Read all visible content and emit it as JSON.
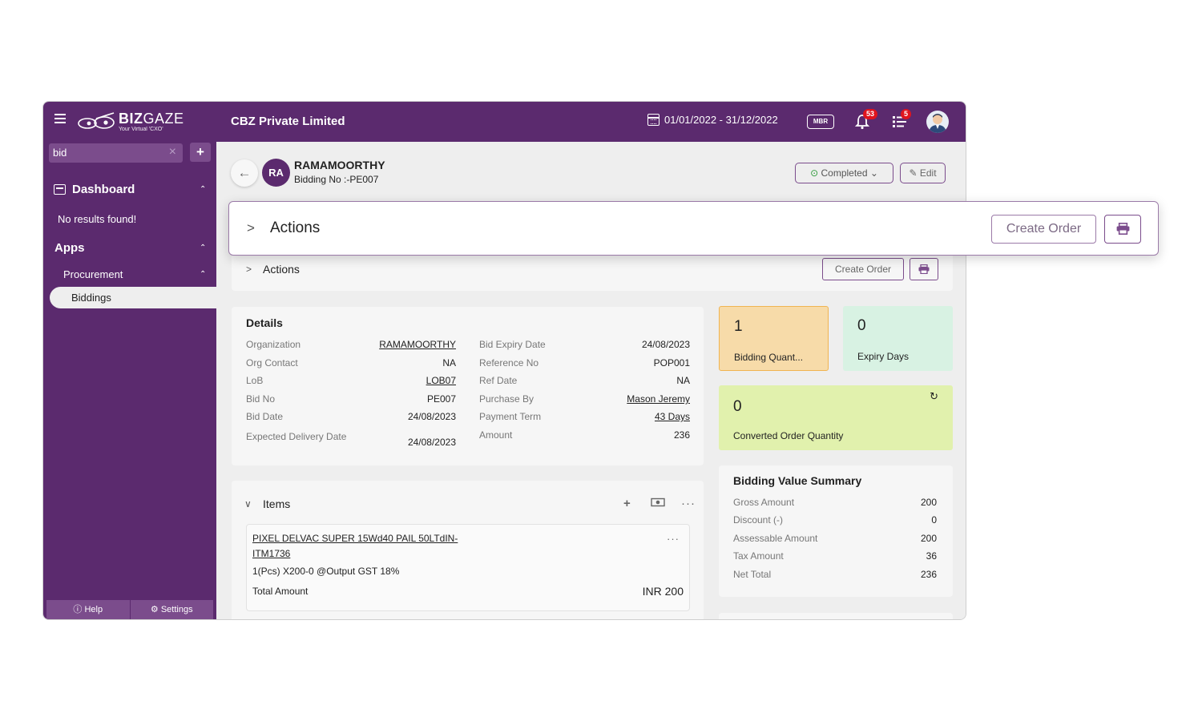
{
  "app": {
    "company": "CBZ Private Limited",
    "logo_brand_bold": "BIZ",
    "logo_brand_thin": "GAZE",
    "logo_tagline": "Your Virtual 'CXO'",
    "date_range": "01/01/2022 - 31/12/2022",
    "mbr_label": "MBR",
    "notifications_count": "53",
    "tasks_count": "5",
    "brand_color": "#5b2a6e"
  },
  "sidebar": {
    "search_value": "bid",
    "add_label": "+",
    "dashboard_label": "Dashboard",
    "no_results": "No results found!",
    "apps_label": "Apps",
    "procurement_label": "Procurement",
    "biddings_label": "Biddings",
    "help_label": "Help",
    "settings_label": "Settings"
  },
  "record": {
    "initials": "RA",
    "name": "RAMAMOORTHY",
    "bid_no": "Bidding No :-PE007",
    "status": "Completed",
    "edit_label": "Edit"
  },
  "actions": {
    "label": "Actions",
    "create_order_label": "Create Order"
  },
  "details": {
    "title": "Details",
    "left": [
      {
        "key": "Organization",
        "value": "RAMAMOORTHY"
      },
      {
        "key": "Org Contact",
        "value": "NA"
      },
      {
        "key": "LoB",
        "value": "LOB07"
      },
      {
        "key": "Bid No",
        "value": "PE007"
      },
      {
        "key": "Bid Date",
        "value": "24/08/2023"
      },
      {
        "key": "Expected Delivery Date",
        "value": "24/08/2023"
      }
    ],
    "right": [
      {
        "key": "Bid Expiry Date",
        "value": "24/08/2023"
      },
      {
        "key": "Reference No",
        "value": "POP001"
      },
      {
        "key": "Ref Date",
        "value": "NA"
      },
      {
        "key": "Purchase By",
        "value": "Mason Jeremy"
      },
      {
        "key": "Payment Term",
        "value": "43 Days"
      },
      {
        "key": "Amount",
        "value": "236"
      }
    ]
  },
  "cards": {
    "bidding_qty_value": "1",
    "bidding_qty_label": "Bidding Quant...",
    "expiry_days_value": "0",
    "expiry_days_label": "Expiry Days",
    "converted_value": "0",
    "converted_label": "Converted Order Quantity"
  },
  "summary": {
    "title": "Bidding Value Summary",
    "rows": [
      {
        "key": "Gross Amount",
        "value": "200"
      },
      {
        "key": "Discount (-)",
        "value": "0"
      },
      {
        "key": "Assessable Amount",
        "value": "200"
      },
      {
        "key": "Tax Amount",
        "value": "36"
      },
      {
        "key": "Net Total",
        "value": "236"
      }
    ]
  },
  "items": {
    "label": "Items",
    "entries": [
      {
        "title": "PIXEL DELVAC SUPER 15Wd40 PAIL 50LTdIN-ITM1736",
        "qty_line": "1(Pcs) X200-0 @Output GST 18%",
        "total_label": "Total Amount",
        "total_value": "INR 200"
      }
    ]
  }
}
